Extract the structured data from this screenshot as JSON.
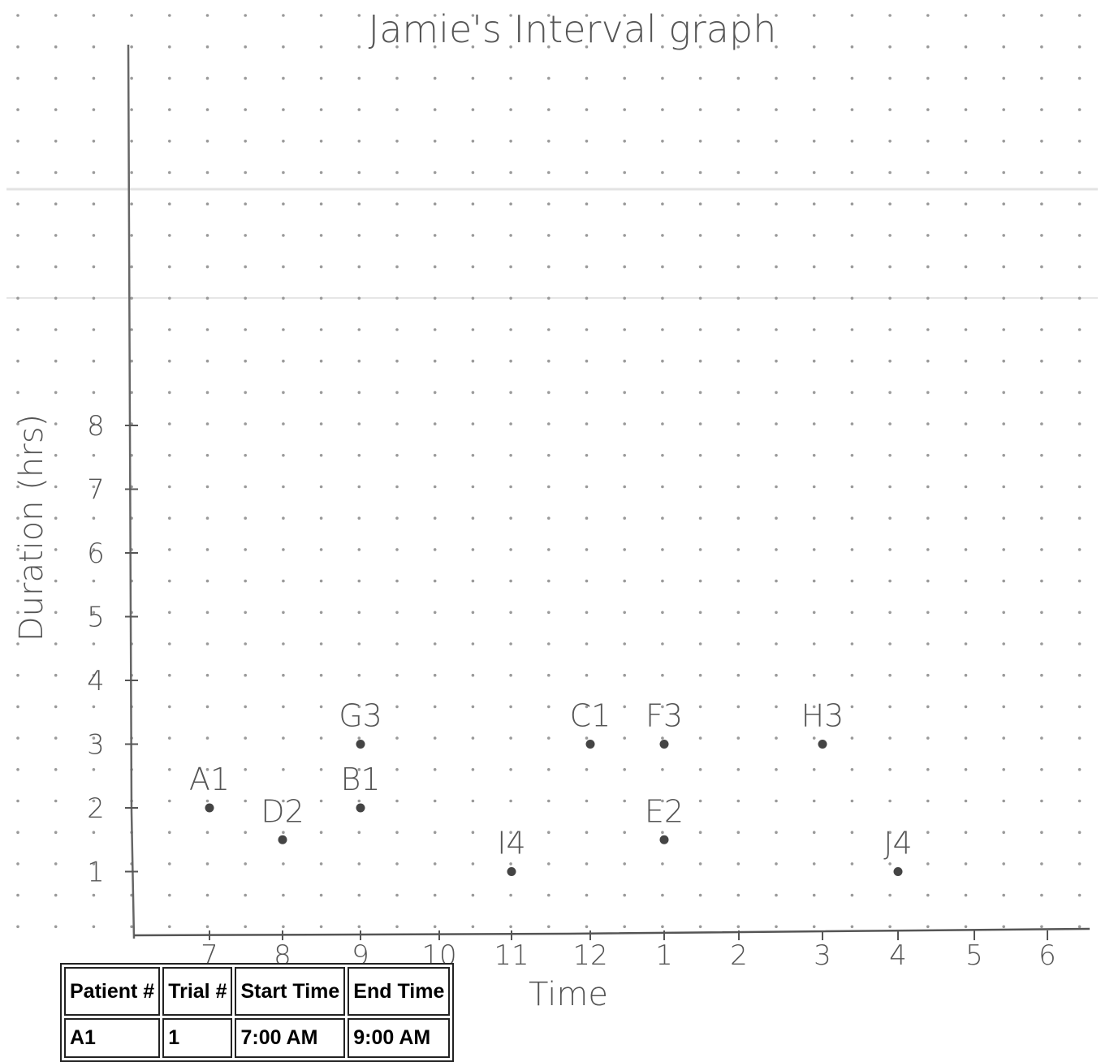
{
  "chart_data": {
    "type": "scatter",
    "title": "Jamie's Interval graph",
    "xlabel": "Time",
    "ylabel": "Duration (hrs)",
    "x_ticks": [
      "7",
      "8",
      "9",
      "10",
      "11",
      "12",
      "1",
      "2",
      "3",
      "4",
      "5",
      "6"
    ],
    "y_ticks": [
      "1",
      "2",
      "3",
      "4",
      "5",
      "6",
      "7",
      "8"
    ],
    "ylim": [
      0,
      8
    ],
    "grid": "dot grid",
    "points": [
      {
        "label": "A1",
        "x": "7",
        "y": 2
      },
      {
        "label": "D2",
        "x": "8",
        "y": 1.5
      },
      {
        "label": "B1",
        "x": "9",
        "y": 2
      },
      {
        "label": "G3",
        "x": "9",
        "y": 3
      },
      {
        "label": "I4",
        "x": "11",
        "y": 1
      },
      {
        "label": "C1",
        "x": "12",
        "y": 3
      },
      {
        "label": "F3",
        "x": "1",
        "y": 3
      },
      {
        "label": "E2",
        "x": "1",
        "y": 1.5
      },
      {
        "label": "H3",
        "x": "3",
        "y": 3
      },
      {
        "label": "J4",
        "x": "4",
        "y": 1
      }
    ]
  },
  "table": {
    "headers": [
      "Patient #",
      "Trial #",
      "Start Time",
      "End Time"
    ],
    "rows": [
      [
        "A1",
        "1",
        "7:00 AM",
        "9:00 AM"
      ]
    ]
  }
}
